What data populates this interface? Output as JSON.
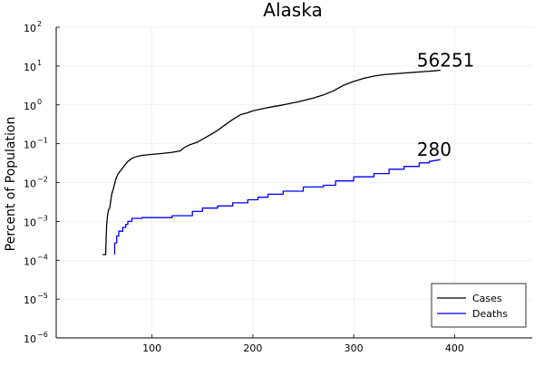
{
  "chart_data": {
    "type": "line",
    "title": "Alaska",
    "ylabel": "Percent of Population",
    "xlabel": "",
    "yscale": "log",
    "xlim": [
      5,
      477
    ],
    "ylim": [
      1e-06,
      100
    ],
    "grid": true,
    "legend_position": "bottom-right",
    "xticks": [
      100,
      200,
      300,
      400
    ],
    "xtick_labels": [
      "100",
      "200",
      "300",
      "400"
    ],
    "yticks": [
      1e-06,
      1e-05,
      0.0001,
      0.001,
      0.01,
      0.1,
      1,
      10,
      100
    ],
    "ytick_labels": [
      {
        "base": "10",
        "exp": "−6"
      },
      {
        "base": "10",
        "exp": "−5"
      },
      {
        "base": "10",
        "exp": "−4"
      },
      {
        "base": "10",
        "exp": "−3"
      },
      {
        "base": "10",
        "exp": "−2"
      },
      {
        "base": "10",
        "exp": "−1"
      },
      {
        "base": "10",
        "exp": "0"
      },
      {
        "base": "10",
        "exp": "1"
      },
      {
        "base": "10",
        "exp": "2"
      }
    ],
    "series": [
      {
        "name": "Cases",
        "color": "#000000",
        "end_label": "56251",
        "x": [
          51,
          54,
          55,
          56,
          57,
          58,
          60,
          61,
          62,
          64,
          66,
          68,
          70,
          73,
          76,
          80,
          85,
          90,
          100,
          110,
          120,
          128,
          132,
          138,
          145,
          152,
          158,
          165,
          172,
          180,
          188,
          194,
          200,
          210,
          220,
          230,
          245,
          260,
          270,
          280,
          290,
          300,
          310,
          320,
          330,
          340,
          350,
          360,
          370,
          380,
          386
        ],
        "y": [
          0.00014,
          0.00014,
          0.0008,
          0.0015,
          0.002,
          0.0022,
          0.005,
          0.006,
          0.0075,
          0.012,
          0.016,
          0.019,
          0.022,
          0.028,
          0.035,
          0.042,
          0.047,
          0.05,
          0.053,
          0.056,
          0.06,
          0.065,
          0.08,
          0.095,
          0.11,
          0.14,
          0.17,
          0.22,
          0.3,
          0.42,
          0.56,
          0.62,
          0.7,
          0.8,
          0.9,
          1.0,
          1.2,
          1.5,
          1.8,
          2.3,
          3.2,
          4.0,
          4.8,
          5.5,
          6.0,
          6.3,
          6.6,
          6.9,
          7.2,
          7.5,
          7.8
        ]
      },
      {
        "name": "Deaths",
        "color": "#0000ff",
        "end_label": "280",
        "x": [
          63,
          63,
          65,
          65,
          67,
          67,
          71,
          71,
          74,
          74,
          76,
          76,
          80,
          80,
          90,
          90,
          120,
          120,
          140,
          140,
          150,
          150,
          165,
          165,
          180,
          180,
          195,
          195,
          205,
          205,
          215,
          215,
          230,
          230,
          250,
          250,
          270,
          270,
          282,
          282,
          300,
          300,
          320,
          320,
          335,
          335,
          350,
          350,
          365,
          365,
          375,
          375,
          386
        ],
        "y": [
          0.00014,
          0.00028,
          0.00028,
          0.00042,
          0.00042,
          0.00056,
          0.00056,
          0.0007,
          0.0007,
          0.00084,
          0.00084,
          0.001,
          0.001,
          0.0012,
          0.0012,
          0.00125,
          0.00125,
          0.0014,
          0.0014,
          0.0018,
          0.0018,
          0.0022,
          0.0022,
          0.0025,
          0.0025,
          0.003,
          0.003,
          0.0036,
          0.0036,
          0.0042,
          0.0042,
          0.005,
          0.005,
          0.006,
          0.006,
          0.0077,
          0.0077,
          0.0085,
          0.0085,
          0.011,
          0.011,
          0.014,
          0.014,
          0.017,
          0.017,
          0.022,
          0.022,
          0.026,
          0.026,
          0.032,
          0.032,
          0.035,
          0.039
        ]
      }
    ]
  }
}
